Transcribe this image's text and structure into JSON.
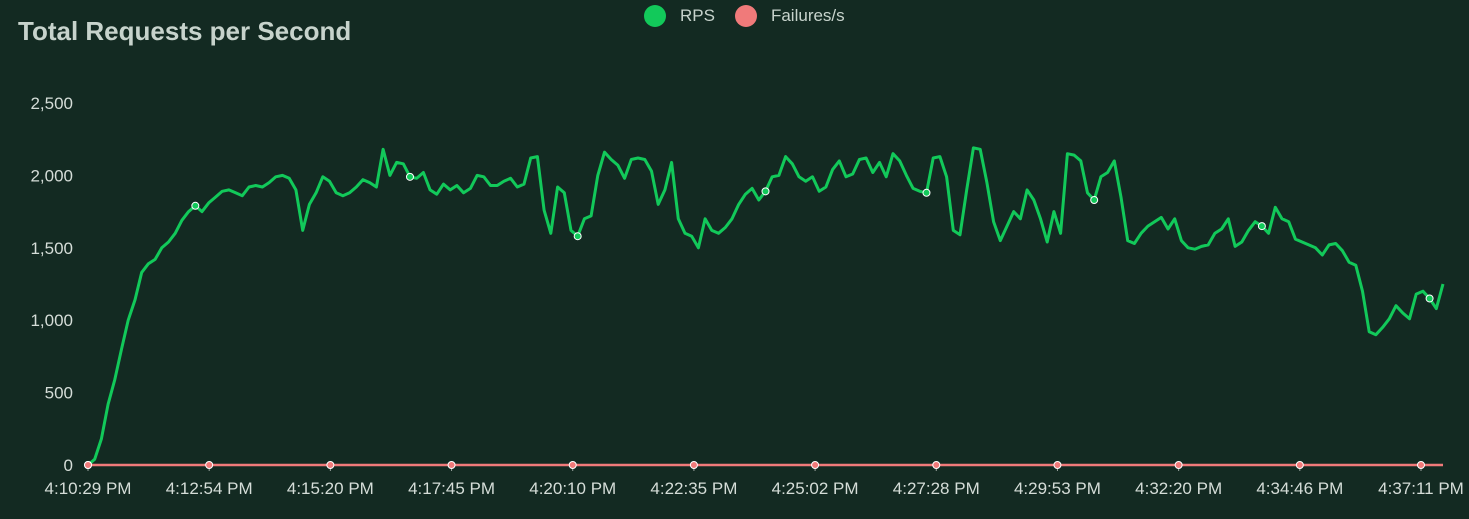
{
  "colors": {
    "background": "#132a22",
    "rps": "#12c95a",
    "failures": "#f07a7a",
    "text": "#c7d3cc",
    "axis": "#b0b0b0"
  },
  "chart_data": {
    "type": "line",
    "title": "Total Requests per Second",
    "xlabel": "",
    "ylabel": "",
    "ylim": [
      0,
      2500
    ],
    "yticks": [
      0,
      500,
      1000,
      1500,
      2000,
      2500
    ],
    "ytick_labels": [
      "0",
      "500",
      "1,000",
      "1,500",
      "2,000",
      "2,500"
    ],
    "xtick_labels": [
      "4:10:29 PM",
      "4:12:54 PM",
      "4:15:20 PM",
      "4:17:45 PM",
      "4:20:10 PM",
      "4:22:35 PM",
      "4:25:02 PM",
      "4:27:28 PM",
      "4:29:53 PM",
      "4:32:20 PM",
      "4:34:46 PM",
      "4:37:11 PM"
    ],
    "grid": false,
    "legend_position": "top",
    "series": [
      {
        "name": "RPS",
        "color": "#12c95a",
        "values": [
          0,
          40,
          180,
          420,
          590,
          800,
          1000,
          1140,
          1330,
          1390,
          1420,
          1500,
          1540,
          1600,
          1690,
          1750,
          1790,
          1750,
          1810,
          1850,
          1890,
          1900,
          1880,
          1860,
          1920,
          1930,
          1920,
          1950,
          1990,
          2000,
          1980,
          1900,
          1620,
          1800,
          1880,
          1990,
          1960,
          1880,
          1860,
          1880,
          1920,
          1970,
          1950,
          1920,
          2180,
          2000,
          2090,
          2080,
          1990,
          1980,
          2020,
          1900,
          1870,
          1940,
          1900,
          1930,
          1880,
          1910,
          2000,
          1990,
          1930,
          1930,
          1960,
          1980,
          1920,
          1940,
          2120,
          2130,
          1760,
          1600,
          1920,
          1880,
          1620,
          1580,
          1700,
          1720,
          2000,
          2160,
          2110,
          2070,
          1980,
          2110,
          2120,
          2110,
          2030,
          1800,
          1900,
          2090,
          1700,
          1600,
          1580,
          1500,
          1700,
          1620,
          1600,
          1640,
          1700,
          1800,
          1870,
          1910,
          1830,
          1890,
          1990,
          2000,
          2130,
          2080,
          1990,
          1960,
          1990,
          1890,
          1920,
          2040,
          2100,
          1990,
          2010,
          2110,
          2120,
          2020,
          2090,
          1990,
          2150,
          2100,
          2000,
          1910,
          1890,
          1880,
          2120,
          2130,
          1990,
          1620,
          1590,
          1900,
          2190,
          2180,
          1950,
          1680,
          1550,
          1650,
          1750,
          1700,
          1900,
          1830,
          1700,
          1540,
          1750,
          1600,
          2150,
          2140,
          2100,
          1880,
          1830,
          1990,
          2020,
          2100,
          1850,
          1550,
          1530,
          1600,
          1650,
          1680,
          1710,
          1630,
          1700,
          1550,
          1500,
          1490,
          1510,
          1520,
          1600,
          1630,
          1700,
          1510,
          1540,
          1620,
          1680,
          1650,
          1600,
          1780,
          1700,
          1680,
          1560,
          1540,
          1520,
          1500,
          1450,
          1520,
          1530,
          1480,
          1400,
          1380,
          1200,
          920,
          900,
          950,
          1010,
          1100,
          1050,
          1010,
          1180,
          1200,
          1150,
          1080,
          1250
        ],
        "markers_at": [
          0,
          16,
          48,
          73,
          101,
          125,
          150,
          175,
          200,
          225,
          250,
          275
        ]
      },
      {
        "name": "Failures/s",
        "color": "#f07a7a",
        "values": [
          0,
          0,
          0,
          0,
          0,
          0,
          0,
          0,
          0,
          0,
          0,
          0
        ],
        "markers_at": [
          0,
          1,
          2,
          3,
          4,
          5,
          6,
          7,
          8,
          9,
          10,
          11
        ]
      }
    ]
  }
}
